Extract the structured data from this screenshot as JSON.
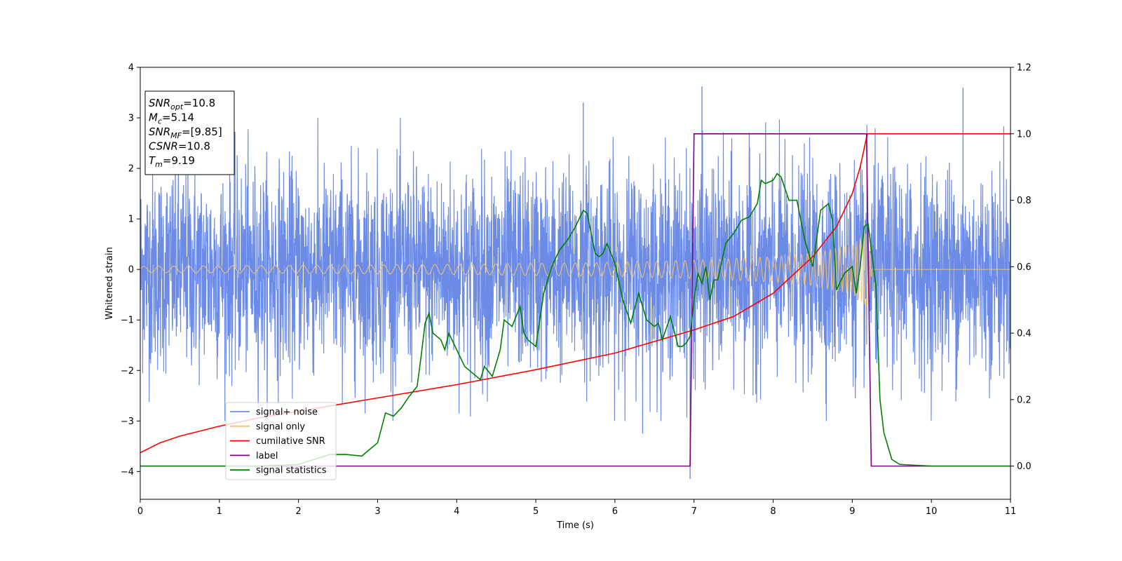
{
  "chart_data": {
    "type": "line",
    "xlabel": "Time (s)",
    "ylabel": "Whitened strain",
    "xlim": [
      0,
      11
    ],
    "ylim_left": [
      -4.55,
      4.0
    ],
    "ylim_right": [
      -0.1,
      1.2
    ],
    "x_ticks": [
      0,
      1,
      2,
      3,
      4,
      5,
      6,
      7,
      8,
      9,
      10,
      11
    ],
    "y_ticks_left": [
      -4,
      -3,
      -2,
      -1,
      0,
      1,
      2,
      3,
      4
    ],
    "y_ticks_left_labels": [
      "−4",
      "−3",
      "−2",
      "−1",
      "0",
      "1",
      "2",
      "3",
      "4"
    ],
    "y_ticks_right": [
      0.0,
      0.2,
      0.4,
      0.6,
      0.8,
      1.0,
      1.2
    ],
    "y_ticks_right_labels": [
      "0.0",
      "0.2",
      "0.4",
      "0.6",
      "0.8",
      "1.0",
      "1.2"
    ],
    "grid": false,
    "legend_position": "lower-left",
    "info_box": {
      "position": "top-left",
      "lines": [
        {
          "sym": "SNR",
          "sub": "opt",
          "value": "=10.8"
        },
        {
          "sym": "M",
          "sub": "c",
          "value": "=5.14"
        },
        {
          "sym": "SNR",
          "sub": "MF",
          "value": "=[9.85]"
        },
        {
          "sym": "CSNR",
          "sub": "",
          "value": "=10.8"
        },
        {
          "sym": "T",
          "sub": "m",
          "value": "=9.19"
        }
      ]
    },
    "series": [
      {
        "name": "signal+ noise",
        "axis": "left",
        "color": "#6b8be6",
        "style": "noise",
        "noise_std": 1.0,
        "spikes": [
          [
            7.1,
            3.62
          ],
          [
            10.4,
            3.6
          ],
          [
            6.95,
            -4.15
          ],
          [
            5.6,
            3.3
          ],
          [
            6.35,
            -3.25
          ]
        ]
      },
      {
        "name": "signal only",
        "axis": "left",
        "color": "#f5c36b",
        "style": "chirp",
        "envelope_x": [
          0,
          2,
          4,
          6,
          7,
          8,
          8.5,
          9.0,
          9.2,
          9.25,
          11
        ],
        "envelope_y": [
          0.06,
          0.08,
          0.1,
          0.14,
          0.18,
          0.25,
          0.32,
          0.48,
          0.75,
          0.0,
          0.0
        ]
      },
      {
        "name": "cumilative SNR",
        "axis": "right",
        "color": "#ff0000",
        "style": "line",
        "x": [
          0,
          0.25,
          0.5,
          1,
          1.5,
          2,
          3,
          4,
          5,
          6,
          7,
          7.5,
          8,
          8.5,
          8.8,
          9.0,
          9.1,
          9.19,
          11
        ],
        "y": [
          0.04,
          0.07,
          0.09,
          0.12,
          0.145,
          0.165,
          0.205,
          0.245,
          0.29,
          0.34,
          0.41,
          0.45,
          0.52,
          0.63,
          0.72,
          0.82,
          0.9,
          1.0,
          1.0
        ]
      },
      {
        "name": "label",
        "axis": "right",
        "color": "#800080",
        "style": "line",
        "x": [
          0,
          6.95,
          7.0,
          9.18,
          9.24,
          11
        ],
        "y": [
          0,
          0,
          1.0,
          1.0,
          0,
          0
        ]
      },
      {
        "name": "signal statistics",
        "axis": "right",
        "color": "#008000",
        "style": "line",
        "x": [
          0,
          0.5,
          1,
          1.5,
          2,
          2.2,
          2.4,
          2.6,
          2.8,
          2.9,
          3.0,
          3.1,
          3.2,
          3.3,
          3.4,
          3.5,
          3.55,
          3.6,
          3.65,
          3.7,
          3.8,
          3.85,
          3.9,
          4.0,
          4.1,
          4.2,
          4.3,
          4.35,
          4.45,
          4.55,
          4.6,
          4.7,
          4.8,
          4.85,
          4.9,
          5.0,
          5.1,
          5.2,
          5.3,
          5.4,
          5.5,
          5.6,
          5.65,
          5.7,
          5.75,
          5.8,
          5.85,
          5.9,
          6.0,
          6.1,
          6.2,
          6.3,
          6.4,
          6.5,
          6.55,
          6.6,
          6.7,
          6.8,
          6.85,
          6.9,
          6.95,
          7.0,
          7.05,
          7.1,
          7.15,
          7.2,
          7.25,
          7.3,
          7.4,
          7.5,
          7.6,
          7.7,
          7.8,
          7.85,
          7.9,
          8.0,
          8.05,
          8.1,
          8.2,
          8.3,
          8.4,
          8.5,
          8.6,
          8.7,
          8.75,
          8.8,
          8.9,
          9.0,
          9.05,
          9.1,
          9.15,
          9.2,
          9.3,
          9.35,
          9.4,
          9.5,
          9.6,
          10,
          11
        ],
        "y": [
          0.0,
          0.0,
          0.0,
          0.0,
          0.005,
          0.02,
          0.035,
          0.035,
          0.03,
          0.05,
          0.07,
          0.16,
          0.15,
          0.175,
          0.21,
          0.24,
          0.33,
          0.43,
          0.46,
          0.4,
          0.38,
          0.35,
          0.4,
          0.35,
          0.3,
          0.28,
          0.26,
          0.3,
          0.27,
          0.35,
          0.44,
          0.42,
          0.48,
          0.4,
          0.38,
          0.36,
          0.52,
          0.6,
          0.65,
          0.68,
          0.72,
          0.77,
          0.76,
          0.7,
          0.64,
          0.63,
          0.64,
          0.67,
          0.61,
          0.5,
          0.43,
          0.52,
          0.44,
          0.42,
          0.43,
          0.38,
          0.45,
          0.36,
          0.36,
          0.37,
          0.39,
          0.5,
          0.58,
          0.55,
          0.6,
          0.5,
          0.56,
          0.56,
          0.67,
          0.7,
          0.74,
          0.75,
          0.79,
          0.86,
          0.85,
          0.86,
          0.88,
          0.87,
          0.8,
          0.8,
          0.68,
          0.6,
          0.77,
          0.79,
          0.74,
          0.53,
          0.58,
          0.6,
          0.52,
          0.6,
          0.72,
          0.73,
          0.54,
          0.2,
          0.1,
          0.02,
          0.005,
          0.0,
          0.0
        ]
      }
    ]
  }
}
